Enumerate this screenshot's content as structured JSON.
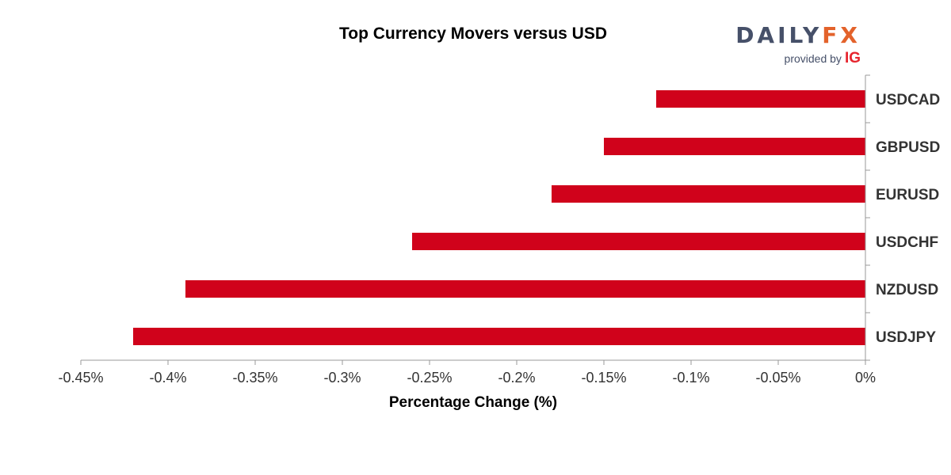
{
  "chart_data": {
    "type": "bar",
    "orientation": "horizontal",
    "title": "Top Currency Movers versus USD",
    "xlabel": "Percentage Change (%)",
    "ylabel": "",
    "xlim": [
      -0.45,
      0
    ],
    "x_ticks": [
      -0.45,
      -0.4,
      -0.35,
      -0.3,
      -0.25,
      -0.2,
      -0.15,
      -0.1,
      -0.05,
      0
    ],
    "x_tick_labels": [
      "-0.45%",
      "-0.4%",
      "-0.35%",
      "-0.3%",
      "-0.25%",
      "-0.2%",
      "-0.15%",
      "-0.1%",
      "-0.05%",
      "0%"
    ],
    "categories": [
      "USDCAD",
      "GBPUSD",
      "EURUSD",
      "USDCHF",
      "NZDUSD",
      "USDJPY"
    ],
    "values": [
      -0.12,
      -0.15,
      -0.18,
      -0.26,
      -0.39,
      -0.42
    ],
    "bar_color": "#d0021b",
    "grid": false,
    "legend": "none",
    "category_axis_side": "right"
  },
  "branding": {
    "logo_part_a": "DAILY",
    "logo_part_b": "FX",
    "provided_by": "provided by",
    "provider": "IG",
    "colors": {
      "logo_primary": "#465069",
      "logo_accent": "#e3622b",
      "provider": "#e6242d"
    }
  }
}
